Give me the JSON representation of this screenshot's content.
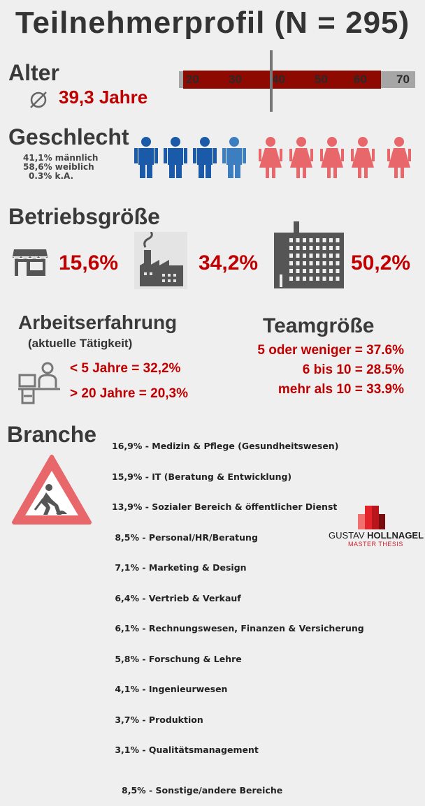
{
  "title": "Teilnehmerprofil (N = 295)",
  "alter": {
    "heading": "Alter",
    "average_icon": "average-diameter-icon",
    "average": "39,3 Jahre",
    "scale_ticks": [
      "20",
      "30",
      "40",
      "50",
      "60",
      "70"
    ],
    "range_min": 20,
    "range_max": 65,
    "mean": 39.3
  },
  "geschlecht": {
    "heading": "Geschlecht",
    "lines": [
      "41,1% männlich",
      "58,6% weiblich",
      "0.3% k.A."
    ],
    "male_icons": 4,
    "female_icons": 5,
    "colors": {
      "male": "#1a5aa8",
      "male_light": "#3c7ec0",
      "female": "#e8676b"
    }
  },
  "betriebsgroesse": {
    "heading": "Betriebsgröße",
    "items": [
      {
        "icon": "shop-icon",
        "value": "15,6%"
      },
      {
        "icon": "factory-icon",
        "value": "34,2%"
      },
      {
        "icon": "office-building-icon",
        "value": "50,2%"
      }
    ]
  },
  "arbeitserfahrung": {
    "heading": "Arbeitserfahrung",
    "subheading": "(aktuelle Tätigkeit)",
    "lines": [
      "< 5 Jahre = 32,2%",
      "> 20 Jahre = 20,3%"
    ]
  },
  "teamgroesse": {
    "heading": "Teamgröße",
    "lines": [
      "5 oder weniger = 37.6%",
      "6 bis 10 = 28.5%",
      "mehr als 10 = 33.9%"
    ]
  },
  "branche": {
    "heading": "Branche",
    "items": [
      "16,9% - Medizin & Pflege (Gesundheitswesen)",
      "15,9% - IT (Beratung & Entwicklung)",
      "13,9% - Sozialer Bereich & öffentlicher Dienst",
      " 8,5% - Personal/HR/Beratung",
      " 7,1% - Marketing & Design",
      " 6,4% - Vertrieb & Verkauf",
      " 6,1% - Rechnungswesen, Finanzen & Versicherung",
      " 5,8% - Forschung & Lehre",
      " 4,1% - Ingenieurwesen",
      " 3,7% - Produktion",
      " 3,1% - Qualitätsmanagement"
    ],
    "other": "8,5% - Sonstige/andere Bereiche"
  },
  "logo": {
    "name_first": "GUSTAV",
    "name_last": "HOLLNAGEL",
    "subtitle": "MASTER THESIS"
  },
  "colors": {
    "accent": "#c00000",
    "bar": "#8e0a00",
    "dark": "#3a3a3a"
  }
}
